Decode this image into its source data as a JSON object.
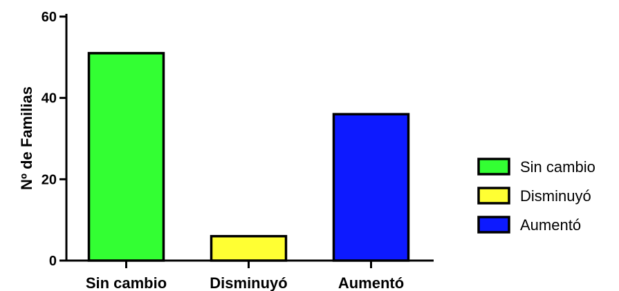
{
  "chart_data": {
    "type": "bar",
    "categories": [
      "Sin cambio",
      "Disminuyó",
      "Aumentó"
    ],
    "values": [
      51,
      6,
      36
    ],
    "colors": [
      "#33ff33",
      "#ffff33",
      "#0d1aff"
    ],
    "xlabel": "",
    "ylabel": "Nº de Familias",
    "ylim": [
      0,
      60
    ],
    "yticks": [
      0,
      20,
      40,
      60
    ],
    "grid": false,
    "legend": {
      "placement": "right",
      "entries": [
        "Sin cambio",
        "Disminuyó",
        "Aumentó"
      ]
    }
  }
}
